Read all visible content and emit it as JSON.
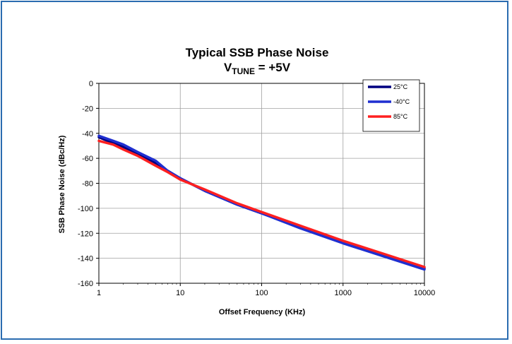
{
  "chart_data": {
    "type": "line",
    "title_line1": "Typical SSB Phase Noise",
    "title_line2_prefix": "V",
    "title_line2_sub": "TUNE",
    "title_line2_suffix": " = +5V",
    "xlabel": "Offset Frequency (KHz)",
    "ylabel": "SSB Phase Noise (dBc/Hz)",
    "x_scale": "log",
    "xlim": [
      1,
      10000
    ],
    "ylim": [
      -160,
      0
    ],
    "x_ticks": [
      "1",
      "10",
      "100",
      "1000",
      "10000"
    ],
    "y_ticks": [
      "0",
      "-20",
      "-40",
      "-60",
      "-80",
      "-100",
      "-120",
      "-140",
      "-160"
    ],
    "grid": true,
    "legend_position": "top-right",
    "series": [
      {
        "name": "25°C",
        "color": "#000080",
        "x": [
          1,
          1.5,
          2,
          3,
          5,
          7,
          10,
          20,
          50,
          100,
          300,
          1000,
          3000,
          10000
        ],
        "y": [
          -43,
          -48,
          -51,
          -56,
          -64,
          -70,
          -76,
          -86,
          -97,
          -104,
          -115,
          -127,
          -137,
          -148
        ]
      },
      {
        "name": "-40°C",
        "color": "#1f2fd0",
        "x": [
          1,
          1.5,
          2,
          3,
          5,
          7,
          10,
          20,
          50,
          100,
          300,
          1000,
          3000,
          10000
        ],
        "y": [
          -42,
          -46,
          -49,
          -55,
          -62,
          -70,
          -76,
          -86,
          -97,
          -104,
          -116,
          -128,
          -138,
          -149
        ]
      },
      {
        "name": "85°C",
        "color": "#ff2020",
        "x": [
          1,
          1.5,
          2,
          3,
          5,
          7,
          10,
          20,
          50,
          100,
          300,
          1000,
          3000,
          10000
        ],
        "y": [
          -46,
          -49,
          -53,
          -58,
          -66,
          -71,
          -77,
          -85,
          -96,
          -103,
          -114,
          -126,
          -136,
          -147
        ]
      }
    ]
  }
}
